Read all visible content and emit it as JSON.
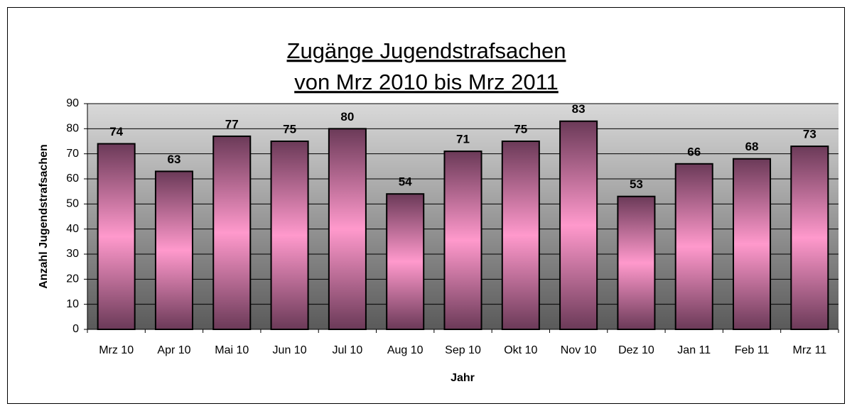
{
  "chart_data": {
    "type": "bar",
    "title": [
      "Zugänge Jugendstrafsachen",
      "von Mrz 2010 bis Mrz 2011"
    ],
    "x_label": "Jahr",
    "y_label": "Anzahl Jugendstrafsachen",
    "categories": [
      "Mrz 10",
      "Apr 10",
      "Mai 10",
      "Jun 10",
      "Jul 10",
      "Aug 10",
      "Sep 10",
      "Okt 10",
      "Nov 10",
      "Dez 10",
      "Jan 11",
      "Feb 11",
      "Mrz 11"
    ],
    "values": [
      74,
      63,
      77,
      75,
      80,
      54,
      71,
      75,
      83,
      53,
      66,
      68,
      73
    ],
    "color": "#ff99cc",
    "ylim": [
      0,
      90
    ],
    "yticks": [
      0,
      10,
      20,
      30,
      40,
      50,
      60,
      70,
      80,
      90
    ],
    "grid": true
  }
}
